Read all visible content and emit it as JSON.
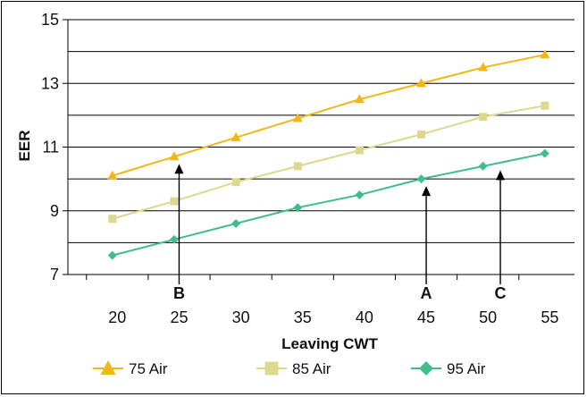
{
  "chart_data": {
    "type": "line",
    "xlabel": "Leaving CWT",
    "ylabel": "EER",
    "xlim": [
      16,
      57
    ],
    "ylim": [
      7,
      15
    ],
    "x_ticks": [
      20,
      25,
      30,
      35,
      40,
      45,
      50,
      55
    ],
    "y_ticks": [
      7,
      9,
      11,
      13,
      15
    ],
    "grid": "horizontal",
    "legend_position": "bottom",
    "series": [
      {
        "name": "75 Air",
        "color": "#F2B619",
        "marker": "triangle",
        "x": [
          19.6,
          24.6,
          29.6,
          34.6,
          39.6,
          44.6,
          49.6,
          54.6
        ],
        "values": [
          10.1,
          10.7,
          11.3,
          11.9,
          12.5,
          13.0,
          13.5,
          13.9
        ]
      },
      {
        "name": "85 Air",
        "color": "#DCD88E",
        "marker": "square",
        "x": [
          19.6,
          24.6,
          29.6,
          34.6,
          39.6,
          44.6,
          49.6,
          54.6
        ],
        "values": [
          8.75,
          9.3,
          9.9,
          10.4,
          10.9,
          11.4,
          11.95,
          12.3
        ]
      },
      {
        "name": "95 Air",
        "color": "#3DBE8A",
        "marker": "diamond",
        "x": [
          19.6,
          24.6,
          29.6,
          34.6,
          39.6,
          44.6,
          49.6,
          54.6
        ],
        "values": [
          7.6,
          8.1,
          8.6,
          9.1,
          9.5,
          10.0,
          10.4,
          10.8
        ]
      }
    ],
    "annotations": [
      {
        "label": "B",
        "x": 25,
        "y_from": 7,
        "y_to": 10.7
      },
      {
        "label": "A",
        "x": 45,
        "y_from": 7,
        "y_to": 10.0
      },
      {
        "label": "C",
        "x": 51,
        "y_from": 7,
        "y_to": 10.5
      }
    ]
  }
}
